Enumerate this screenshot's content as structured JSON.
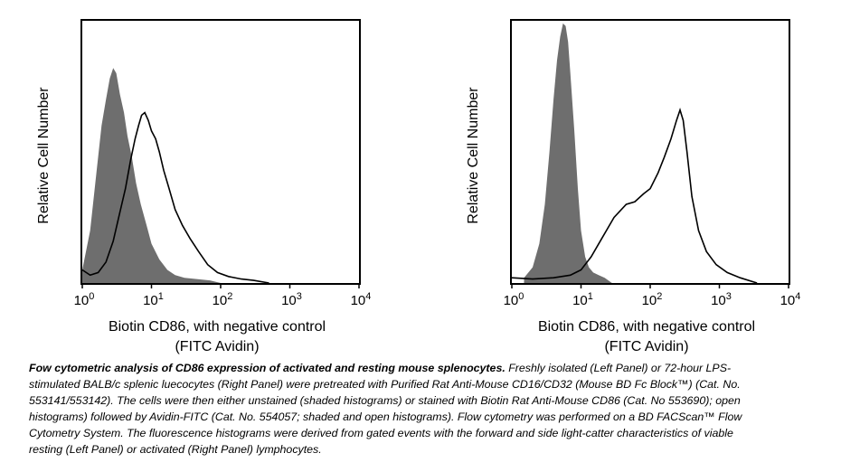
{
  "colors": {
    "shaded_fill": "#6e6e6e",
    "open_line": "#000000",
    "axes": "#000000"
  },
  "chart_data": [
    {
      "type": "area",
      "xscale": "log",
      "xlim": [
        1,
        10000
      ],
      "ylim": [
        0,
        1
      ],
      "xlabel_line1": "Biotin CD86, with negative control",
      "xlabel_line2": "(FITC Avidin)",
      "ylabel": "Relative Cell Number",
      "xtick_bases": [
        "10",
        "10",
        "10",
        "10",
        "10"
      ],
      "xtick_exps": [
        "0",
        "1",
        "2",
        "3",
        "4"
      ],
      "xticks": [
        1,
        10,
        100,
        1000,
        10000
      ],
      "series": [
        {
          "style": "shaded",
          "x": [
            1,
            1.3,
            1.6,
            1.9,
            2.2,
            2.5,
            2.8,
            3.1,
            3.5,
            4,
            4.5,
            5.2,
            6,
            7,
            8.5,
            10,
            13,
            17,
            22,
            30,
            45,
            70,
            100
          ],
          "y": [
            0.05,
            0.2,
            0.42,
            0.6,
            0.7,
            0.78,
            0.82,
            0.8,
            0.72,
            0.65,
            0.56,
            0.48,
            0.38,
            0.3,
            0.22,
            0.15,
            0.09,
            0.05,
            0.03,
            0.02,
            0.015,
            0.01,
            0
          ]
        },
        {
          "style": "open",
          "x": [
            1,
            1.3,
            1.7,
            2.2,
            2.8,
            3.5,
            4.2,
            5,
            5.8,
            6.5,
            7.2,
            8,
            9,
            10,
            11.5,
            13,
            15,
            18,
            22,
            28,
            36,
            48,
            65,
            90,
            130,
            200,
            300,
            500
          ],
          "y": [
            0.05,
            0.03,
            0.04,
            0.08,
            0.16,
            0.27,
            0.36,
            0.47,
            0.55,
            0.6,
            0.64,
            0.65,
            0.62,
            0.58,
            0.55,
            0.5,
            0.43,
            0.36,
            0.28,
            0.22,
            0.17,
            0.12,
            0.07,
            0.04,
            0.025,
            0.015,
            0.01,
            0
          ]
        }
      ]
    },
    {
      "type": "area",
      "xscale": "log",
      "xlim": [
        1,
        10000
      ],
      "ylim": [
        0,
        1
      ],
      "xlabel_line1": "Biotin CD86, with negative control",
      "xlabel_line2": "(FITC Avidin)",
      "ylabel": "Relative Cell Number",
      "xtick_bases": [
        "10",
        "10",
        "10",
        "10",
        "10"
      ],
      "xtick_exps": [
        "0",
        "1",
        "2",
        "3",
        "4"
      ],
      "xticks": [
        1,
        10,
        100,
        1000,
        10000
      ],
      "series": [
        {
          "style": "shaded",
          "x": [
            1.5,
            2,
            2.5,
            3,
            3.5,
            4,
            4.5,
            5,
            5.5,
            6,
            6.5,
            7,
            8,
            9,
            10,
            11.5,
            13,
            15,
            18,
            22,
            28
          ],
          "y": [
            0.02,
            0.06,
            0.15,
            0.3,
            0.5,
            0.7,
            0.85,
            0.94,
            0.99,
            0.98,
            0.92,
            0.8,
            0.58,
            0.36,
            0.2,
            0.1,
            0.06,
            0.04,
            0.03,
            0.02,
            0
          ]
        },
        {
          "style": "open",
          "x": [
            1,
            2,
            4,
            7,
            10,
            14,
            20,
            30,
            45,
            60,
            80,
            100,
            130,
            160,
            200,
            240,
            270,
            300,
            340,
            400,
            500,
            650,
            900,
            1300,
            2000,
            3500
          ],
          "y": [
            0.02,
            0.015,
            0.02,
            0.03,
            0.05,
            0.1,
            0.17,
            0.25,
            0.3,
            0.31,
            0.34,
            0.36,
            0.42,
            0.48,
            0.55,
            0.62,
            0.66,
            0.62,
            0.5,
            0.33,
            0.2,
            0.12,
            0.07,
            0.04,
            0.02,
            0
          ]
        }
      ]
    }
  ],
  "caption": {
    "title": "Fow cytometric analysis of  CD86 expression of activated and resting mouse splenocytes.",
    "body": " Freshly isolated (Left Panel) or 72-hour LPS-stimulated BALB/c splenic luecocytes (Right Panel) were pretreated with Purified Rat Anti-Mouse CD16/CD32 (Mouse BD Fc Block™) (Cat. No. 553141/553142).   The cells were then either unstained (shaded histograms) or stained with Biotin Rat Anti-Mouse CD86 (Cat. No 553690); open histograms) followed by Avidin-FITC (Cat. No. 554057; shaded and open histograms). Flow cytometry was performed on a BD FACScan™ Flow Cytometry System. The fluorescence histograms were derived from gated events with the forward and side light-catter characteristics of viable resting (Left Panel) or activated (Right Panel) lymphocytes."
  }
}
